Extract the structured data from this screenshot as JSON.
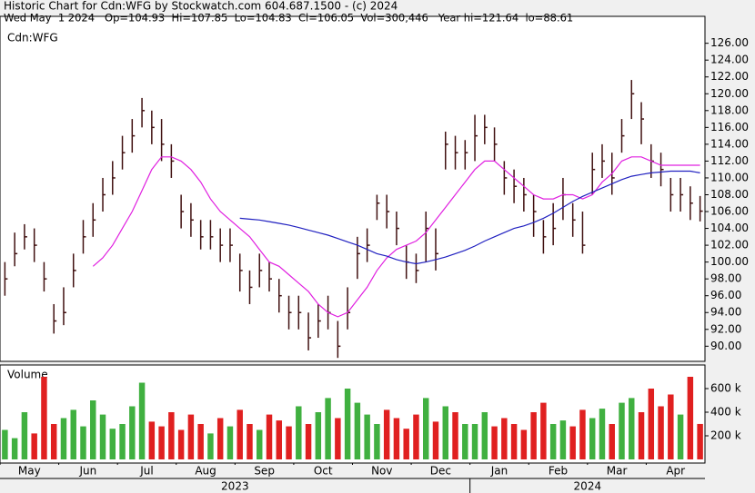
{
  "chart_data": {
    "type": "ohlc",
    "title": "Historic Chart for Cdn:WFG by Stockwatch.com 604.687.1500 - (c) 2024",
    "subtitle": "Wed May  1 2024   Op=104.93  Hi=107.85  Lo=104.83  Cl=106.05  Vol=300,446   Year hi=121.64  lo=88.61",
    "symbol_label": "Cdn:WFG",
    "volume_label": "Volume",
    "categories": [
      "May",
      null,
      null,
      null,
      null,
      null,
      "Jun",
      null,
      null,
      null,
      null,
      null,
      "Jul",
      null,
      null,
      null,
      null,
      null,
      "Aug",
      null,
      null,
      null,
      null,
      null,
      "Sep",
      null,
      null,
      null,
      null,
      null,
      "Oct",
      null,
      null,
      null,
      null,
      null,
      "Nov",
      null,
      null,
      null,
      null,
      null,
      "Dec",
      null,
      null,
      null,
      null,
      null,
      "Jan",
      null,
      null,
      null,
      null,
      null,
      "Feb",
      null,
      null,
      null,
      null,
      null,
      "Mar",
      null,
      null,
      null,
      null,
      null,
      "Apr",
      null,
      null,
      null,
      null,
      null
    ],
    "years": [
      {
        "label": "2023",
        "from": 0,
        "to": 47
      },
      {
        "label": "2024",
        "from": 48,
        "to": 71
      }
    ],
    "high": [
      100,
      103.5,
      104.5,
      104,
      100,
      95,
      97,
      101,
      105,
      107,
      110,
      112,
      115,
      117,
      119.5,
      118,
      117,
      114,
      108,
      107,
      105,
      105,
      104,
      104,
      101,
      99,
      101,
      100,
      98,
      96,
      96,
      94,
      95,
      96,
      93,
      97,
      103,
      104,
      108,
      108,
      106,
      102,
      101,
      106,
      104,
      115.5,
      115,
      114.5,
      117.5,
      117.5,
      116,
      112,
      111,
      110,
      108,
      105,
      107,
      110,
      107,
      106,
      113,
      114,
      113,
      117,
      121.64,
      119,
      114,
      113,
      110,
      110,
      109,
      107.85
    ],
    "low": [
      96,
      99.5,
      101.5,
      100,
      96.5,
      91.5,
      92.5,
      97,
      101,
      103,
      106,
      108,
      111,
      113,
      116,
      114,
      112,
      110,
      104,
      103,
      101.5,
      101.5,
      100,
      100,
      96.5,
      95,
      97,
      96.5,
      94,
      92,
      92,
      89.5,
      91,
      92,
      88.61,
      92,
      98,
      100,
      105,
      104,
      102,
      98,
      97.5,
      100,
      99,
      111,
      111,
      111,
      112,
      114,
      112,
      108,
      107,
      106,
      103,
      101,
      102,
      105,
      103,
      101,
      108,
      110,
      108,
      113,
      117,
      114,
      110,
      109,
      106,
      106,
      105,
      104.83
    ],
    "close": [
      98,
      101,
      103,
      102,
      98,
      93,
      94,
      99,
      103,
      105,
      108,
      110,
      113,
      115,
      118,
      116,
      114,
      112,
      106,
      105,
      103,
      103,
      102,
      102,
      99,
      97,
      99,
      98,
      96,
      94,
      94,
      91,
      93,
      94,
      90,
      94,
      101,
      102,
      107,
      106,
      104,
      100,
      99,
      104,
      101,
      114,
      113,
      113,
      115,
      116,
      114,
      110,
      109,
      108,
      106,
      103,
      104,
      108,
      105,
      102,
      111,
      112,
      110,
      115,
      120,
      117,
      112,
      111,
      108,
      108,
      107,
      106.05
    ],
    "volume": [
      250000,
      180000,
      400000,
      220000,
      700000,
      300000,
      350000,
      420000,
      280000,
      500000,
      380000,
      260000,
      300000,
      450000,
      650000,
      320000,
      280000,
      400000,
      250000,
      380000,
      300000,
      220000,
      350000,
      280000,
      420000,
      300000,
      250000,
      380000,
      330000,
      280000,
      450000,
      300000,
      400000,
      520000,
      350000,
      600000,
      480000,
      380000,
      300000,
      420000,
      350000,
      260000,
      380000,
      520000,
      320000,
      450000,
      400000,
      300000,
      300000,
      400000,
      280000,
      350000,
      300000,
      250000,
      400000,
      480000,
      300000,
      330000,
      280000,
      420000,
      350000,
      430000,
      300000,
      480000,
      520000,
      400000,
      600000,
      450000,
      550000,
      380000,
      700000,
      300446
    ],
    "ma_series": [
      {
        "color": "#e020e0",
        "values": [
          null,
          null,
          null,
          null,
          null,
          null,
          null,
          null,
          null,
          99.5,
          100.5,
          102,
          104,
          106,
          108.5,
          111,
          112.5,
          112.5,
          112,
          111,
          109.5,
          107.5,
          106,
          105,
          104,
          103,
          101.5,
          100,
          99.5,
          98.5,
          97.5,
          96.5,
          95,
          94,
          93.5,
          94,
          95.5,
          97,
          99,
          100.5,
          101.5,
          102,
          102.5,
          103.5,
          105,
          106.5,
          108,
          109.5,
          111,
          112,
          112,
          111,
          110,
          109,
          108,
          107.5,
          107.5,
          108,
          108,
          107.5,
          108,
          109.5,
          110.5,
          112,
          112.5,
          112.5,
          112,
          111.5,
          111.5,
          111.5,
          111.5,
          111.5
        ]
      },
      {
        "color": "#2020c0",
        "values": [
          null,
          null,
          null,
          null,
          null,
          null,
          null,
          null,
          null,
          null,
          null,
          null,
          null,
          null,
          null,
          null,
          null,
          null,
          null,
          null,
          null,
          null,
          null,
          null,
          105.2,
          105.1,
          105,
          104.8,
          104.6,
          104.4,
          104.1,
          103.8,
          103.5,
          103.2,
          102.8,
          102.4,
          102,
          101.5,
          101,
          100.7,
          100.3,
          100,
          99.8,
          100,
          100.3,
          100.6,
          101,
          101.4,
          101.9,
          102.5,
          103,
          103.5,
          104,
          104.3,
          104.7,
          105.2,
          105.8,
          106.5,
          107.2,
          107.8,
          108.3,
          108.8,
          109.3,
          109.8,
          110.2,
          110.4,
          110.6,
          110.7,
          110.8,
          110.8,
          110.8,
          110.6
        ]
      }
    ],
    "bar_color": "#401010",
    "up_color": "#40b040",
    "down_color": "#e02020",
    "ylim": [
      88.2,
      129.2
    ],
    "yticks": [
      {
        "value": 90,
        "label": "90.00"
      },
      {
        "value": 92,
        "label": "92.00"
      },
      {
        "value": 94,
        "label": "94.00"
      },
      {
        "value": 96,
        "label": "96.00"
      },
      {
        "value": 98,
        "label": "98.00"
      },
      {
        "value": 100,
        "label": "100.00"
      },
      {
        "value": 102,
        "label": "102.00"
      },
      {
        "value": 104,
        "label": "104.00"
      },
      {
        "value": 106,
        "label": "106.00"
      },
      {
        "value": 108,
        "label": "108.00"
      },
      {
        "value": 110,
        "label": "110.00"
      },
      {
        "value": 112,
        "label": "112.00"
      },
      {
        "value": 114,
        "label": "114.00"
      },
      {
        "value": 116,
        "label": "116.00"
      },
      {
        "value": 118,
        "label": "118.00"
      },
      {
        "value": 120,
        "label": "120.00"
      },
      {
        "value": 122,
        "label": "122.00"
      },
      {
        "value": 124,
        "label": "124.00"
      },
      {
        "value": 126,
        "label": "126.00"
      }
    ],
    "y2lim": [
      0,
      800000
    ],
    "y2ticks": [
      {
        "value": 200000,
        "label": "200 k"
      },
      {
        "value": 400000,
        "label": "400 k"
      },
      {
        "value": 600000,
        "label": "600 k"
      }
    ],
    "grid": false
  }
}
